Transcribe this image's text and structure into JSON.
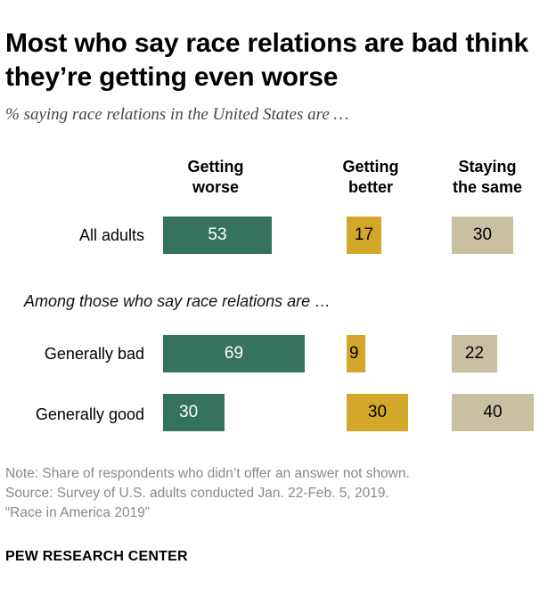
{
  "title": "Most who say race relations are bad think they’re getting even worse",
  "subtitle": "% saying race relations in the United States are …",
  "subgroup_heading": "Among those who say race relations are …",
  "notes": [
    "Note: Share of respondents who didn’t offer an answer not shown.",
    "Source: Survey of U.S. adults conducted Jan. 22-Feb. 5, 2019.",
    "“Race in America 2019”"
  ],
  "brand": "PEW RESEARCH CENTER",
  "colors": {
    "worse": "#36735f",
    "better": "#d3a729",
    "same": "#c8c0a1"
  },
  "chart_data": {
    "type": "bar",
    "categories": [
      "All adults",
      "Generally bad",
      "Generally good"
    ],
    "series": [
      {
        "name": "Getting worse",
        "values": [
          53,
          69,
          30
        ]
      },
      {
        "name": "Getting better",
        "values": [
          17,
          9,
          30
        ]
      },
      {
        "name": "Staying the same",
        "values": [
          30,
          22,
          40
        ]
      }
    ],
    "title": "Most who say race relations are bad think they’re getting even worse",
    "subtitle": "% saying race relations in the United States are …",
    "xlabel": "",
    "ylabel": ""
  }
}
